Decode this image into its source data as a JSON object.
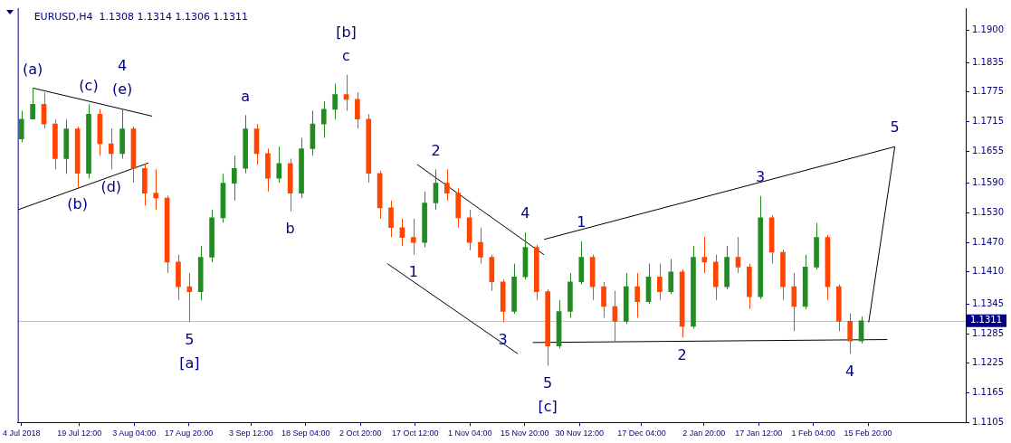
{
  "chart_data": {
    "type": "candlestick",
    "title": "EURUSD,H4  1.1308 1.1314 1.1306 1.1311",
    "colors": [
      "#228b22",
      "#228b22",
      "#ff4500",
      "#ff4500",
      "#228b22",
      "#ff4500",
      "#228b22",
      "#ff4500",
      "#ff4500",
      "#228b22",
      "#ff4500",
      "#ff4500",
      "#ff4500",
      "#ff4500",
      "#ff4500",
      "#ff4500",
      "#228b22",
      "#228b22",
      "#228b22",
      "#228b22",
      "#228b22",
      "#ff4500",
      "#ff4500",
      "#228b22",
      "#ff4500",
      "#228b22",
      "#228b22",
      "#228b22",
      "#228b22",
      "#ff4500",
      "#ff4500",
      "#ff4500",
      "#ff4500",
      "#ff4500",
      "#ff4500",
      "#ff4500",
      "#228b22",
      "#228b22",
      "#ff4500",
      "#ff4500",
      "#ff4500",
      "#ff4500",
      "#ff4500",
      "#ff4500",
      "#228b22",
      "#228b22",
      "#ff4500",
      "#ff4500",
      "#228b22",
      "#228b22",
      "#228b22",
      "#ff4500",
      "#ff4500",
      "#ff4500",
      "#228b22",
      "#ff4500",
      "#228b22",
      "#ff4500",
      "#228b22",
      "#ff4500",
      "#228b22",
      "#ff4500",
      "#ff4500",
      "#228b22",
      "#ff4500",
      "#ff4500",
      "#228b22",
      "#ff4500",
      "#ff4500",
      "#ff4500",
      "#228b22",
      "#228b22",
      "#ff4500",
      "#ff4500",
      "#ff4500",
      "#228b22"
    ],
    "x": [
      "2018-07-04",
      "2018-07-07",
      "2018-07-10",
      "2018-07-13",
      "2018-07-16",
      "2018-07-19",
      "2018-07-22",
      "2018-07-25",
      "2018-07-28",
      "2018-07-31",
      "2018-08-03",
      "2018-08-06",
      "2018-08-09",
      "2018-08-12",
      "2018-08-15",
      "2018-08-18",
      "2018-08-21",
      "2018-08-24",
      "2018-08-27",
      "2018-08-30",
      "2018-09-02",
      "2018-09-05",
      "2018-09-08",
      "2018-09-11",
      "2018-09-14",
      "2018-09-17",
      "2018-09-20",
      "2018-09-23",
      "2018-09-26",
      "2018-09-29",
      "2018-10-02",
      "2018-10-05",
      "2018-10-08",
      "2018-10-11",
      "2018-10-14",
      "2018-10-17",
      "2018-10-20",
      "2018-10-23",
      "2018-10-26",
      "2018-10-29",
      "2018-11-01",
      "2018-11-04",
      "2018-11-07",
      "2018-11-10",
      "2018-11-13",
      "2018-11-16",
      "2018-11-19",
      "2018-11-22",
      "2018-11-25",
      "2018-11-28",
      "2018-12-01",
      "2018-12-04",
      "2018-12-07",
      "2018-12-10",
      "2018-12-13",
      "2018-12-16",
      "2018-12-19",
      "2018-12-22",
      "2018-12-25",
      "2018-12-28",
      "2018-12-31",
      "2019-01-03",
      "2019-01-06",
      "2019-01-09",
      "2019-01-12",
      "2019-01-15",
      "2019-01-18",
      "2019-01-21",
      "2019-01-24",
      "2019-01-27",
      "2019-01-30",
      "2019-02-02",
      "2019-02-05",
      "2019-02-08",
      "2019-02-11",
      "2019-02-14"
    ],
    "ohlc": [
      [
        1.168,
        1.1737,
        1.1673,
        1.172
      ],
      [
        1.172,
        1.1783,
        1.1719,
        1.175
      ],
      [
        1.175,
        1.1774,
        1.1701,
        1.171
      ],
      [
        1.171,
        1.1719,
        1.1618,
        1.164
      ],
      [
        1.164,
        1.1719,
        1.1609,
        1.17
      ],
      [
        1.17,
        1.1705,
        1.1582,
        1.161
      ],
      [
        1.161,
        1.175,
        1.16,
        1.173
      ],
      [
        1.173,
        1.174,
        1.1646,
        1.167
      ],
      [
        1.167,
        1.1701,
        1.1618,
        1.165
      ],
      [
        1.165,
        1.1741,
        1.164,
        1.17
      ],
      [
        1.17,
        1.1705,
        1.1591,
        1.162
      ],
      [
        1.162,
        1.163,
        1.1545,
        1.157
      ],
      [
        1.157,
        1.1618,
        1.1536,
        1.156
      ],
      [
        1.156,
        1.1565,
        1.1408,
        1.143
      ],
      [
        1.143,
        1.1445,
        1.1353,
        1.138
      ],
      [
        1.138,
        1.1408,
        1.1308,
        1.137
      ],
      [
        1.137,
        1.1463,
        1.1353,
        1.144
      ],
      [
        1.144,
        1.1536,
        1.143,
        1.152
      ],
      [
        1.152,
        1.1609,
        1.151,
        1.159
      ],
      [
        1.159,
        1.1646,
        1.1555,
        1.162
      ],
      [
        1.162,
        1.1728,
        1.161,
        1.17
      ],
      [
        1.17,
        1.171,
        1.1628,
        1.165
      ],
      [
        1.165,
        1.166,
        1.1573,
        1.16
      ],
      [
        1.16,
        1.1664,
        1.1591,
        1.163
      ],
      [
        1.163,
        1.164,
        1.1533,
        1.157
      ],
      [
        1.157,
        1.1682,
        1.156,
        1.166
      ],
      [
        1.166,
        1.1737,
        1.1646,
        1.171
      ],
      [
        1.171,
        1.1756,
        1.1682,
        1.174
      ],
      [
        1.174,
        1.1792,
        1.1719,
        1.177
      ],
      [
        1.177,
        1.181,
        1.1737,
        1.176
      ],
      [
        1.176,
        1.1774,
        1.1701,
        1.172
      ],
      [
        1.172,
        1.173,
        1.1591,
        1.161
      ],
      [
        1.161,
        1.1615,
        1.1518,
        1.154
      ],
      [
        1.154,
        1.1555,
        1.1481,
        1.15
      ],
      [
        1.15,
        1.1518,
        1.1463,
        1.148
      ],
      [
        1.148,
        1.1518,
        1.1445,
        1.147
      ],
      [
        1.147,
        1.1573,
        1.146,
        1.155
      ],
      [
        1.155,
        1.1618,
        1.1536,
        1.159
      ],
      [
        1.159,
        1.1618,
        1.1555,
        1.157
      ],
      [
        1.157,
        1.158,
        1.15,
        1.152
      ],
      [
        1.152,
        1.1536,
        1.1454,
        1.147
      ],
      [
        1.147,
        1.15,
        1.1427,
        1.144
      ],
      [
        1.144,
        1.1445,
        1.1372,
        1.139
      ],
      [
        1.139,
        1.1395,
        1.1308,
        1.133
      ],
      [
        1.133,
        1.1427,
        1.1325,
        1.14
      ],
      [
        1.14,
        1.149,
        1.1395,
        1.146
      ],
      [
        1.146,
        1.1465,
        1.1353,
        1.137
      ],
      [
        1.137,
        1.1375,
        1.122,
        1.126
      ],
      [
        1.126,
        1.1353,
        1.1255,
        1.133
      ],
      [
        1.133,
        1.1408,
        1.1317,
        1.139
      ],
      [
        1.139,
        1.1472,
        1.1385,
        1.144
      ],
      [
        1.144,
        1.1445,
        1.1353,
        1.138
      ],
      [
        1.138,
        1.139,
        1.1317,
        1.134
      ],
      [
        1.134,
        1.1372,
        1.1267,
        1.131
      ],
      [
        1.131,
        1.1408,
        1.1305,
        1.138
      ],
      [
        1.138,
        1.1408,
        1.1317,
        1.135
      ],
      [
        1.135,
        1.1427,
        1.1345,
        1.14
      ],
      [
        1.14,
        1.1427,
        1.1353,
        1.137
      ],
      [
        1.137,
        1.1436,
        1.1365,
        1.141
      ],
      [
        1.141,
        1.1415,
        1.1277,
        1.13
      ],
      [
        1.13,
        1.1463,
        1.1295,
        1.144
      ],
      [
        1.144,
        1.1481,
        1.1408,
        1.143
      ],
      [
        1.143,
        1.1445,
        1.1353,
        1.138
      ],
      [
        1.138,
        1.1463,
        1.1375,
        1.144
      ],
      [
        1.144,
        1.1481,
        1.1408,
        1.142
      ],
      [
        1.142,
        1.1427,
        1.1335,
        1.136
      ],
      [
        1.136,
        1.1564,
        1.1355,
        1.152
      ],
      [
        1.152,
        1.1525,
        1.1427,
        1.145
      ],
      [
        1.145,
        1.1455,
        1.1353,
        1.138
      ],
      [
        1.138,
        1.1408,
        1.129,
        1.134
      ],
      [
        1.134,
        1.1445,
        1.1335,
        1.142
      ],
      [
        1.142,
        1.1509,
        1.1415,
        1.148
      ],
      [
        1.148,
        1.1485,
        1.1353,
        1.138
      ],
      [
        1.138,
        1.1385,
        1.129,
        1.131
      ],
      [
        1.131,
        1.1326,
        1.1244,
        1.127
      ],
      [
        1.127,
        1.132,
        1.1265,
        1.1311
      ]
    ],
    "series": [
      {
        "type": "line",
        "color": "#000000",
        "x": [
          "2018-07-07",
          "2018-08-08"
        ],
        "values": [
          1.1783,
          1.1726
        ]
      },
      {
        "type": "line",
        "color": "#000000",
        "x": [
          "2018-07-03",
          "2018-08-07"
        ],
        "values": [
          1.1536,
          1.1631
        ]
      },
      {
        "type": "line",
        "color": "#000000",
        "x": [
          "2018-10-18",
          "2018-11-21"
        ],
        "values": [
          1.1628,
          1.1445
        ]
      },
      {
        "type": "line",
        "color": "#000000",
        "x": [
          "2018-10-10",
          "2018-11-14"
        ],
        "values": [
          1.1427,
          1.1244
        ]
      },
      {
        "type": "line",
        "color": "#000000",
        "x": [
          "2018-11-21",
          "2019-02-23",
          "2019-02-16"
        ],
        "values": [
          1.1476,
          1.1664,
          1.1308
        ]
      },
      {
        "type": "line",
        "color": "#000000",
        "x": [
          "2018-11-18",
          "2019-02-21"
        ],
        "values": [
          1.1267,
          1.1273
        ]
      }
    ],
    "xlim": [
      "2018-07-03",
      "2019-03-14"
    ],
    "xticks": [
      {
        "value": "2018-07-04",
        "label": "4 Jul 2018"
      },
      {
        "value": "2018-07-19T12:00",
        "label": "19 Jul 12:00"
      },
      {
        "value": "2018-08-03T04:00",
        "label": "3 Aug 04:00"
      },
      {
        "value": "2018-08-17T20:00",
        "label": "17 Aug 20:00"
      },
      {
        "value": "2018-09-03T12:00",
        "label": "3 Sep 12:00"
      },
      {
        "value": "2018-09-18T04:00",
        "label": "18 Sep 04:00"
      },
      {
        "value": "2018-10-02T20:00",
        "label": "2 Oct 20:00"
      },
      {
        "value": "2018-10-17T12:00",
        "label": "17 Oct 12:00"
      },
      {
        "value": "2018-11-01T04:00",
        "label": "1 Nov 04:00"
      },
      {
        "value": "2018-11-15T20:00",
        "label": "15 Nov 20:00"
      },
      {
        "value": "2018-11-30T12:00",
        "label": "30 Nov 12:00"
      },
      {
        "value": "2018-12-17T04:00",
        "label": "17 Dec 04:00"
      },
      {
        "value": "2019-01-02T20:00",
        "label": "2 Jan 20:00"
      },
      {
        "value": "2019-01-17T12:00",
        "label": "17 Jan 12:00"
      },
      {
        "value": "2019-02-01T04:00",
        "label": "1 Feb 04:00"
      },
      {
        "value": "2019-02-15T20:00",
        "label": "15 Feb 20:00"
      }
    ],
    "ylim": [
      1.1105,
      1.1945
    ],
    "yticks": [
      1.1105,
      1.1165,
      1.1225,
      1.1285,
      1.1345,
      {
        "value": 1.141,
        "label": "1.1410"
      },
      {
        "value": 1.147,
        "label": "1.1470"
      },
      {
        "value": 1.153,
        "label": "1.1530"
      },
      {
        "value": 1.159,
        "label": "1.1590"
      },
      1.1655,
      1.1715,
      1.1775,
      1.1835,
      {
        "value": 1.19,
        "label": "1.1900"
      }
    ],
    "ref_lines": [
      {
        "axis": "y",
        "value": 1.1311,
        "label": "1.1311",
        "color": "#c0c0c0"
      }
    ],
    "annotations": [
      {
        "text": "(a)",
        "x": "2018-07-07",
        "y": 1.1783
      },
      {
        "text": "(b)",
        "x": "2018-07-19",
        "y": 1.1582
      },
      {
        "text": "(c)",
        "x": "2018-07-22",
        "y": 1.175
      },
      {
        "text": "(d)",
        "x": "2018-07-28",
        "y": 1.1618
      },
      {
        "text": "(e)",
        "x": "2018-07-31",
        "y": 1.1741
      },
      {
        "text": "4",
        "x": "2018-07-31",
        "y": 1.1741
      },
      {
        "text": "5",
        "x": "2018-08-18",
        "y": 1.1308
      },
      {
        "text": "[a]",
        "x": "2018-08-18",
        "y": 1.1308
      },
      {
        "text": "a",
        "x": "2018-09-02",
        "y": 1.1728
      },
      {
        "text": "b",
        "x": "2018-09-14",
        "y": 1.1533
      },
      {
        "text": "c",
        "x": "2018-09-29",
        "y": 1.181
      },
      {
        "text": "[b]",
        "x": "2018-09-29",
        "y": 1.181
      },
      {
        "text": "1",
        "x": "2018-10-17",
        "y": 1.1445
      },
      {
        "text": "2",
        "x": "2018-10-23",
        "y": 1.1618
      },
      {
        "text": "3",
        "x": "2018-11-10",
        "y": 1.1308
      },
      {
        "text": "4",
        "x": "2018-11-16",
        "y": 1.149
      },
      {
        "text": "5",
        "x": "2018-11-22",
        "y": 1.122
      },
      {
        "text": "[c]",
        "x": "2018-11-22",
        "y": 1.122
      },
      {
        "text": "1",
        "x": "2018-12-01",
        "y": 1.1472
      },
      {
        "text": "2",
        "x": "2018-12-28",
        "y": 1.1277
      },
      {
        "text": "3",
        "x": "2019-01-18",
        "y": 1.1564
      },
      {
        "text": "4",
        "x": "2019-02-11",
        "y": 1.1244
      },
      {
        "text": "5",
        "x": "2019-02-23",
        "y": 1.1664
      }
    ]
  }
}
